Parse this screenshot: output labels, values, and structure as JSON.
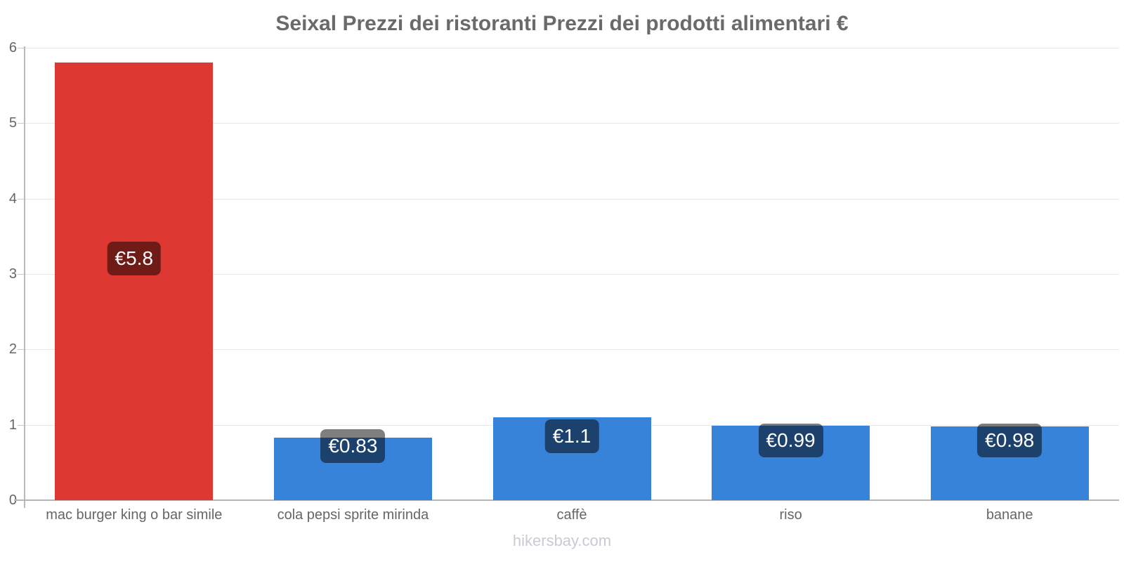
{
  "title": "Seixal Prezzi dei ristoranti Prezzi dei prodotti alimentari €",
  "footer": "hikersbay.com",
  "chart_data": {
    "type": "bar",
    "title": "Seixal Prezzi dei ristoranti Prezzi dei prodotti alimentari €",
    "categories": [
      "mac burger king o bar simile",
      "cola pepsi sprite mirinda",
      "caffè",
      "riso",
      "banane"
    ],
    "values": [
      5.8,
      0.83,
      1.1,
      0.99,
      0.98
    ],
    "value_labels": [
      "€5.8",
      "€0.83",
      "€1.1",
      "€0.99",
      "€0.98"
    ],
    "bar_colors": [
      "#de3832",
      "#3883da",
      "#3883da",
      "#3883da",
      "#3883da"
    ],
    "currency": "€",
    "xlabel": "",
    "ylabel": "",
    "ylim": [
      0,
      6
    ],
    "yticks": [
      0,
      1,
      2,
      3,
      4,
      5,
      6
    ],
    "grid": true,
    "legend": "none",
    "value_label_style": {
      "background": "rgba(0,0,0,0.5)",
      "text_color": "#ffffff"
    }
  },
  "colors": {
    "title": "#6a6a6d",
    "tick_label": "#666666",
    "category_label": "#65666a",
    "grid_line": "#e8e8e8",
    "axis_line": "#b5b5b5",
    "footer": "#c9cad3",
    "bar_red": "#de3832",
    "bar_blue": "#3883da"
  }
}
